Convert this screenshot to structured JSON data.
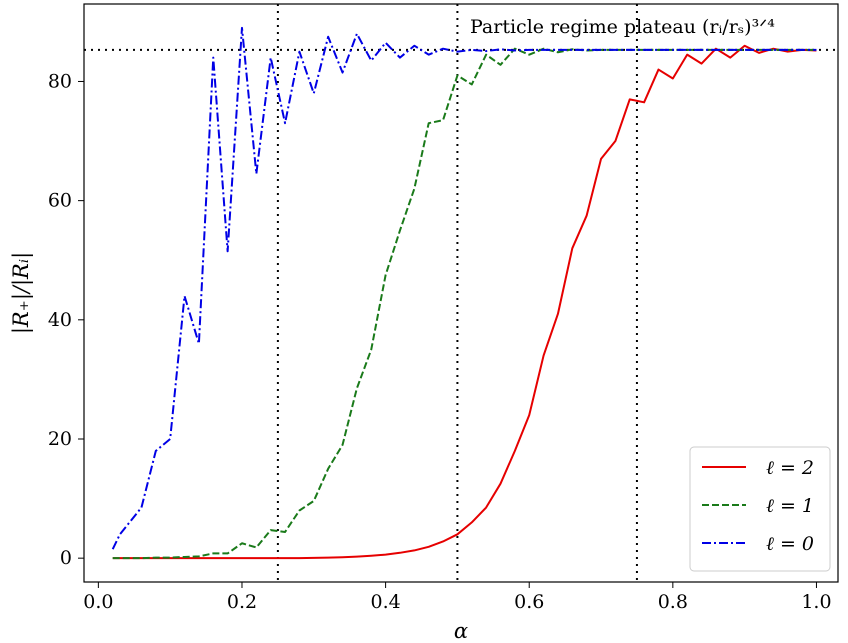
{
  "chart_data": {
    "type": "line",
    "xlabel": "α",
    "ylabel": "|R₊|/|Rᵢ|",
    "xlim": [
      -0.02,
      1.03
    ],
    "ylim": [
      -4,
      93
    ],
    "xticks": [
      0.0,
      0.2,
      0.4,
      0.6,
      0.8,
      1.0
    ],
    "xtick_labels": [
      "0.0",
      "0.2",
      "0.4",
      "0.6",
      "0.8",
      "1.0"
    ],
    "yticks": [
      0,
      20,
      40,
      60,
      80
    ],
    "ytick_labels": [
      "0",
      "20",
      "40",
      "60",
      "80"
    ],
    "grid": false,
    "legend_position": "bottom-right",
    "annotation": "Particle regime plateau (rᵢ/rₛ)³ᐟ⁴",
    "plateau_y": 85.3,
    "vlines": [
      0.25,
      0.5,
      0.75
    ],
    "series": [
      {
        "name": "ℓ = 2",
        "color": "#e60000",
        "dash": "solid",
        "x": [
          0.02,
          0.04,
          0.06,
          0.08,
          0.1,
          0.12,
          0.14,
          0.16,
          0.18,
          0.2,
          0.22,
          0.24,
          0.26,
          0.28,
          0.3,
          0.32,
          0.34,
          0.36,
          0.38,
          0.4,
          0.42,
          0.44,
          0.46,
          0.48,
          0.5,
          0.52,
          0.54,
          0.56,
          0.58,
          0.6,
          0.62,
          0.64,
          0.66,
          0.68,
          0.7,
          0.72,
          0.74,
          0.76,
          0.78,
          0.8,
          0.82,
          0.84,
          0.86,
          0.88,
          0.9,
          0.92,
          0.94,
          0.96,
          0.98,
          1.0
        ],
        "y": [
          0,
          0,
          0,
          0,
          0,
          0,
          0,
          0,
          0,
          0,
          0,
          0,
          0,
          0,
          0.05,
          0.1,
          0.15,
          0.25,
          0.4,
          0.6,
          0.9,
          1.3,
          1.9,
          2.8,
          4,
          6,
          8.5,
          12.5,
          18,
          24,
          34,
          41,
          52,
          57.5,
          67,
          70,
          77,
          76.5,
          82,
          80.5,
          84.5,
          83,
          85.5,
          84,
          86,
          84.8,
          85.5,
          85,
          85.3,
          85.2
        ]
      },
      {
        "name": "ℓ = 1",
        "color": "#1a7a1a",
        "dash": "dashed",
        "x": [
          0.02,
          0.04,
          0.06,
          0.08,
          0.1,
          0.12,
          0.14,
          0.16,
          0.18,
          0.2,
          0.22,
          0.24,
          0.26,
          0.28,
          0.3,
          0.32,
          0.34,
          0.36,
          0.38,
          0.4,
          0.42,
          0.44,
          0.46,
          0.48,
          0.5,
          0.52,
          0.54,
          0.56,
          0.58,
          0.6,
          0.62,
          0.64,
          0.66,
          0.68,
          0.7,
          0.72,
          0.74,
          0.76,
          0.78,
          0.8,
          0.82,
          0.84,
          0.86,
          0.88,
          0.9,
          0.92,
          0.94,
          0.96,
          0.98,
          1.0
        ],
        "y": [
          0,
          0,
          0,
          0.1,
          0.1,
          0.2,
          0.3,
          0.8,
          0.8,
          2.5,
          1.8,
          4.7,
          4.4,
          8,
          9.6,
          15,
          19,
          28.5,
          35,
          47.5,
          55,
          62,
          73,
          73.5,
          81,
          79.5,
          84.5,
          82.8,
          85.5,
          84.5,
          85.5,
          84.9,
          85.4,
          85.2,
          85.3,
          85.3,
          85.3,
          85.3,
          85.3,
          85.3,
          85.3,
          85.3,
          85.3,
          85.3,
          85.3,
          85.3,
          85.3,
          85.3,
          85.3,
          85.3
        ]
      },
      {
        "name": "ℓ = 0",
        "color": "#0000e6",
        "dash": "dashdot",
        "x": [
          0.02,
          0.03,
          0.06,
          0.08,
          0.1,
          0.12,
          0.14,
          0.16,
          0.18,
          0.2,
          0.22,
          0.24,
          0.26,
          0.28,
          0.3,
          0.32,
          0.34,
          0.36,
          0.38,
          0.4,
          0.42,
          0.44,
          0.46,
          0.48,
          0.5,
          0.52,
          0.54,
          0.56,
          0.58,
          0.6,
          0.62,
          0.64,
          0.66,
          0.68,
          0.7,
          0.72,
          0.74,
          0.76,
          0.78,
          0.8,
          0.82,
          0.84,
          0.86,
          0.88,
          0.9,
          0.92,
          0.94,
          0.96,
          0.98,
          1.0
        ],
        "y": [
          1.5,
          4,
          8.5,
          18,
          20,
          44,
          36,
          84,
          51.5,
          89,
          64.5,
          84,
          73,
          85,
          78,
          87.5,
          81.5,
          88,
          83.5,
          86.5,
          84,
          86,
          84.5,
          85.5,
          85,
          85.3,
          85.1,
          85.4,
          85.2,
          85.3,
          85.3,
          85.3,
          85.3,
          85.3,
          85.3,
          85.3,
          85.3,
          85.3,
          85.3,
          85.3,
          85.3,
          85.3,
          85.3,
          85.3,
          85.3,
          85.3,
          85.3,
          85.3,
          85.3,
          85.3
        ]
      }
    ]
  }
}
